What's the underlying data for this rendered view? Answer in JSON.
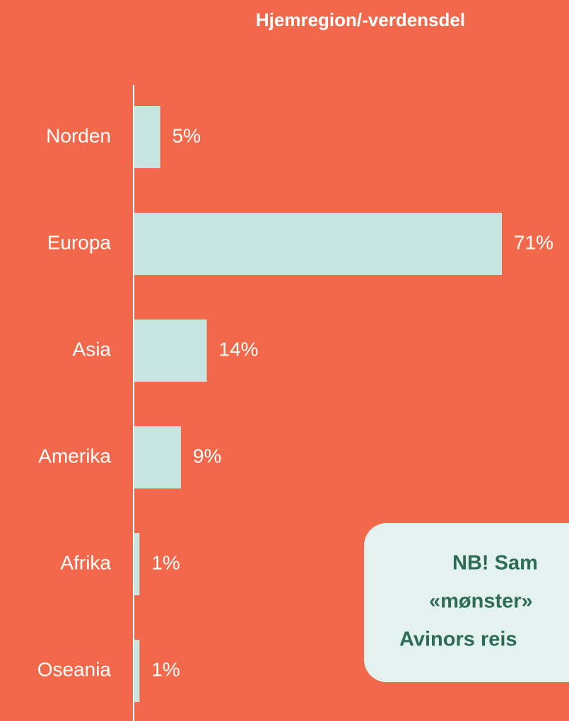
{
  "chart_data": {
    "type": "bar",
    "orientation": "horizontal",
    "title": "Hjemregion/-verdensdel",
    "categories": [
      "Norden",
      "Europa",
      "Asia",
      "Amerika",
      "Afrika",
      "Oseania"
    ],
    "values": [
      5,
      71,
      14,
      9,
      1,
      1
    ],
    "value_labels": [
      "5%",
      "71%",
      "14%",
      "9%",
      "1%",
      "1%"
    ],
    "color": "#c8e6e1"
  },
  "note": {
    "lines": [
      "NB! Sam",
      "«mønster»",
      "Avinors reis"
    ]
  }
}
